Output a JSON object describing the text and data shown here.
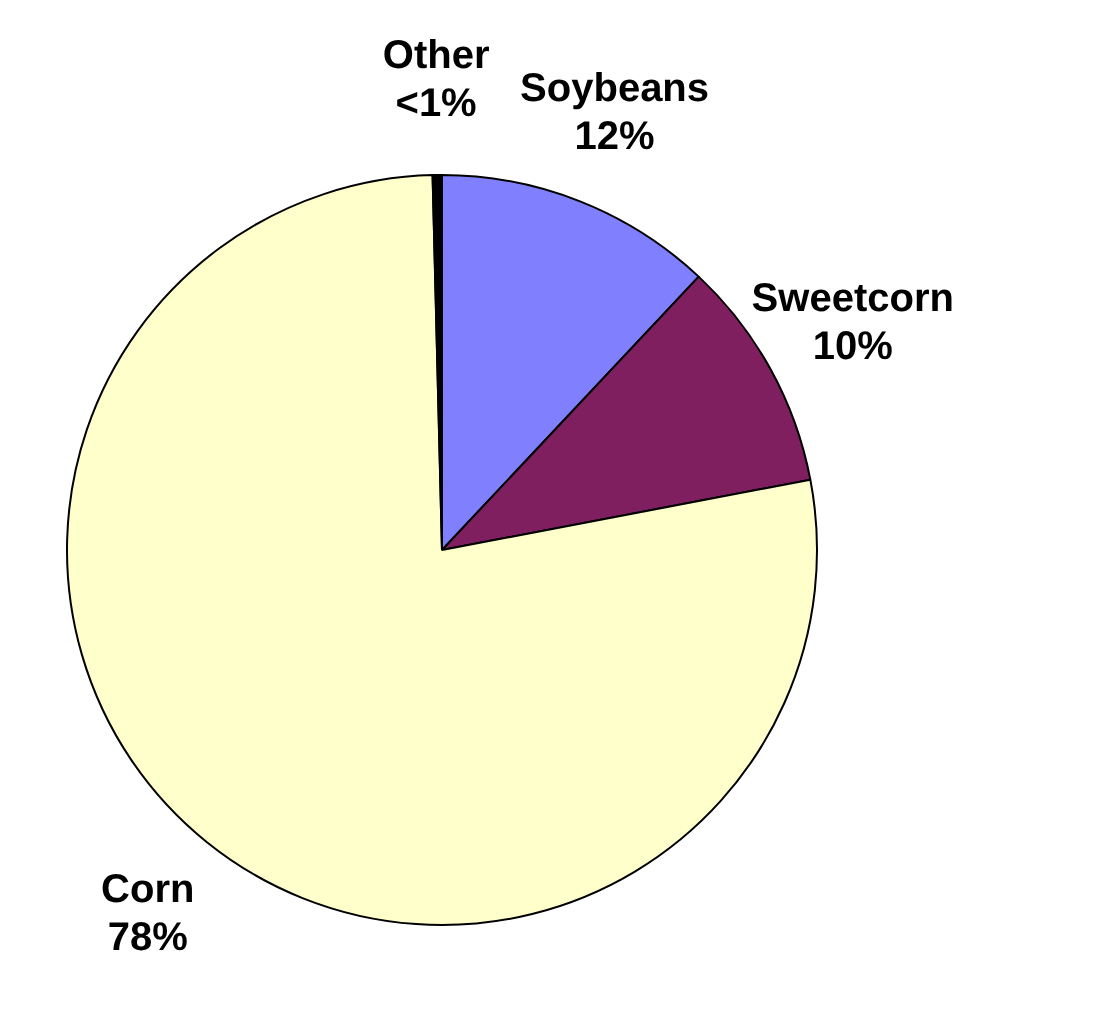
{
  "chart_data": {
    "type": "pie",
    "categories": [
      "Soybeans",
      "Sweetcorn",
      "Corn",
      "Other"
    ],
    "values": [
      12,
      10,
      77.6,
      0.4
    ],
    "colors": [
      "#8080ff",
      "#7f1f5f",
      "#ffffcc",
      "#000000"
    ],
    "value_labels": [
      "12%",
      "10%",
      "78%",
      "<1%"
    ],
    "legend": false
  }
}
